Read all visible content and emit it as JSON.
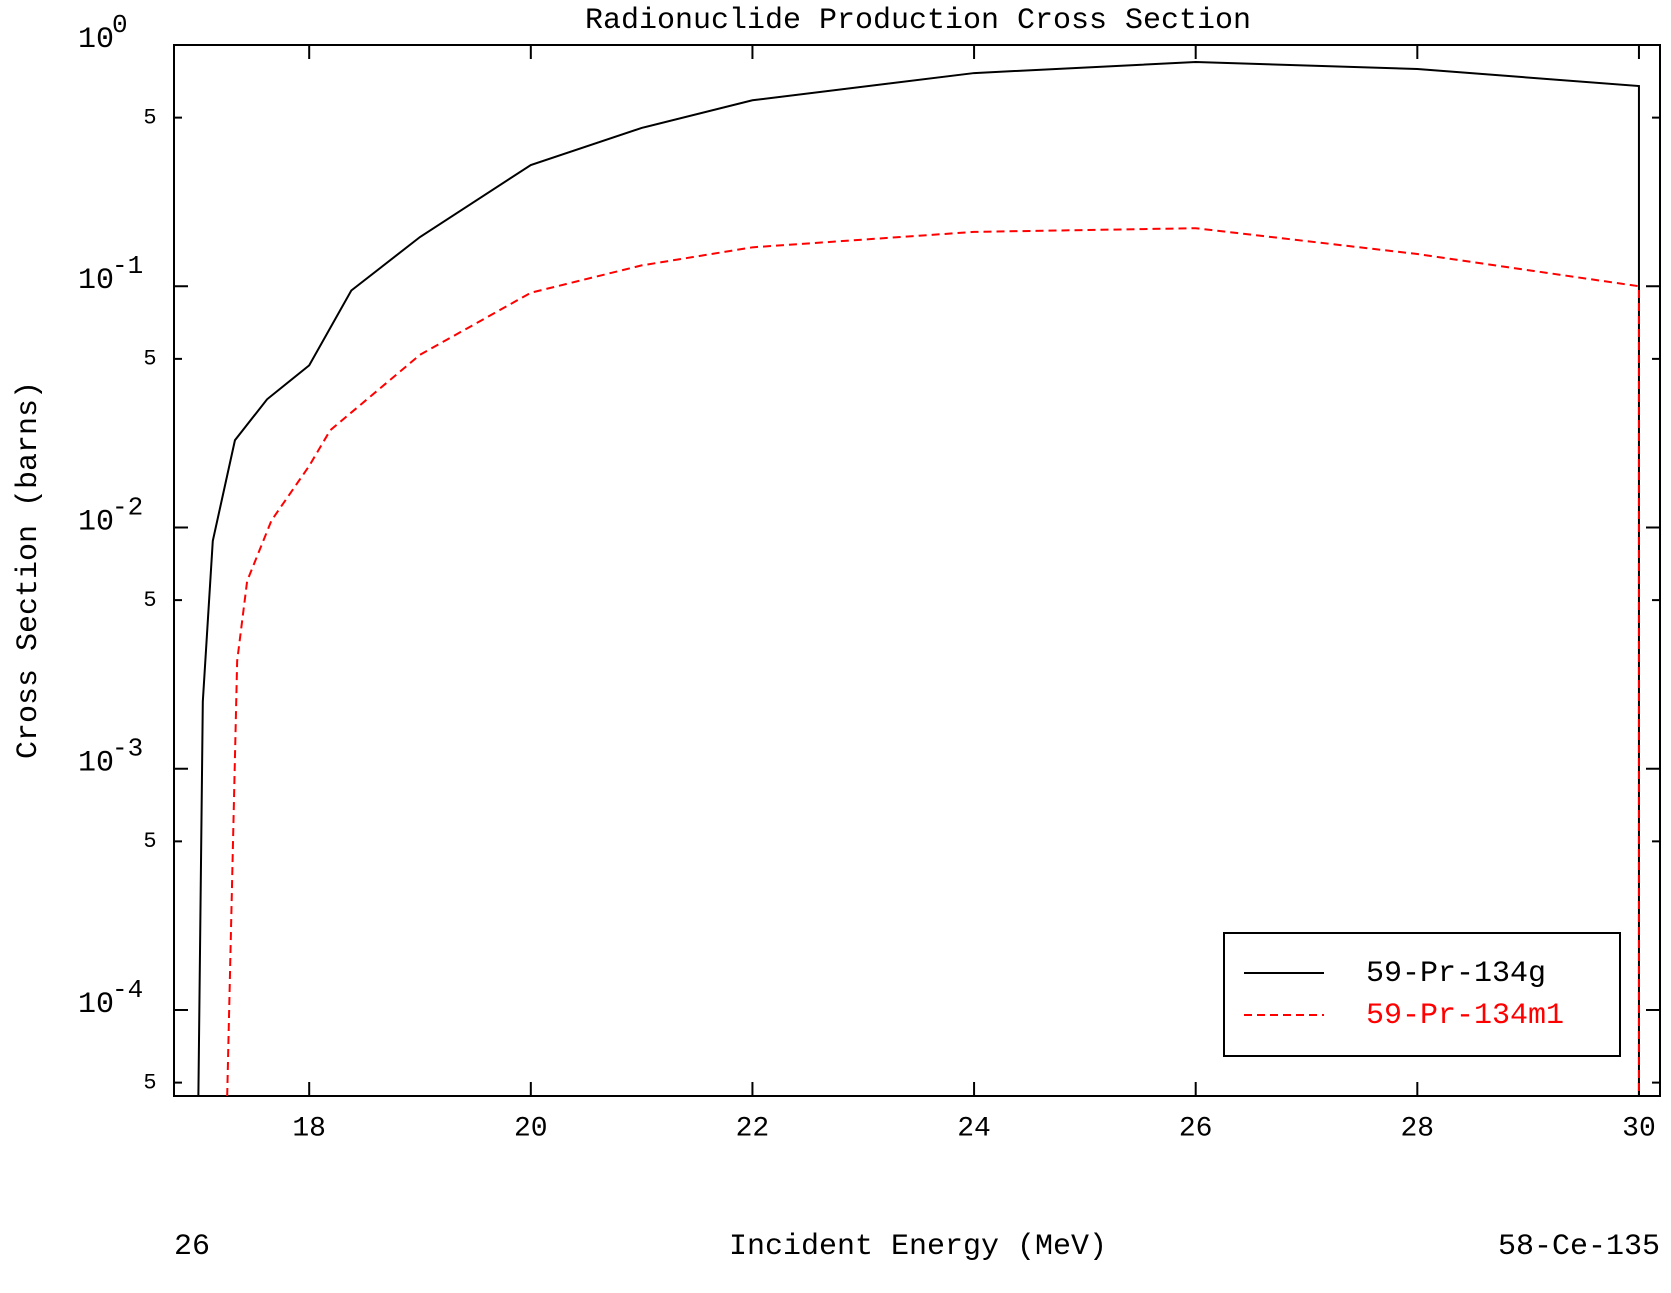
{
  "chart_data": {
    "type": "line",
    "title": "Radionuclide Production Cross Section",
    "xlabel": "Incident Energy (MeV)",
    "ylabel": "Cross Section (barns)",
    "footer_left": "26",
    "footer_right": "58-Ce-135",
    "log_y": true,
    "legend": "lower right",
    "xlim": [
      16.78,
      30.19
    ],
    "xticks": [
      18,
      20,
      22,
      24,
      26,
      28,
      30
    ],
    "ylim": [
      4.4e-05,
      1
    ],
    "yticks": [
      {
        "value": 1,
        "label": "10",
        "exponent": "0"
      },
      {
        "value": 0.5,
        "label": "5"
      },
      {
        "value": 0.1,
        "label": "10",
        "exponent": "-1"
      },
      {
        "value": 0.05,
        "label": "5"
      },
      {
        "value": 0.01,
        "label": "10",
        "exponent": "-2"
      },
      {
        "value": 0.005,
        "label": "5"
      },
      {
        "value": 0.001,
        "label": "10",
        "exponent": "-3"
      },
      {
        "value": 0.0005,
        "label": "5"
      },
      {
        "value": 0.0001,
        "label": "10",
        "exponent": "-4"
      },
      {
        "value": 5e-05,
        "label": "5"
      }
    ],
    "series": [
      {
        "name": "59-Pr-134g",
        "color": "#000000",
        "dash": "solid",
        "x": [
          17.0,
          17.04,
          17.13,
          17.33,
          17.62,
          18,
          18.38,
          19,
          20,
          21,
          22,
          24,
          26,
          28,
          30,
          30
        ],
        "values": [
          4.4e-05,
          0.0019,
          0.0088,
          0.023,
          0.034,
          0.047,
          0.096,
          0.16,
          0.318,
          0.453,
          0.59,
          0.765,
          0.85,
          0.795,
          0.676,
          4.4e-05
        ]
      },
      {
        "name": "59-Pr-134m1",
        "color": "#ff0000",
        "dash": "dashed",
        "x": [
          17.26,
          17.35,
          17.44,
          17.66,
          18,
          18.19,
          19,
          20,
          21,
          22,
          24,
          26,
          28,
          30,
          30
        ],
        "values": [
          4.4e-05,
          0.0028,
          0.006,
          0.0107,
          0.018,
          0.0253,
          0.052,
          0.094,
          0.122,
          0.145,
          0.168,
          0.174,
          0.136,
          0.1,
          4.4e-05
        ]
      }
    ]
  }
}
